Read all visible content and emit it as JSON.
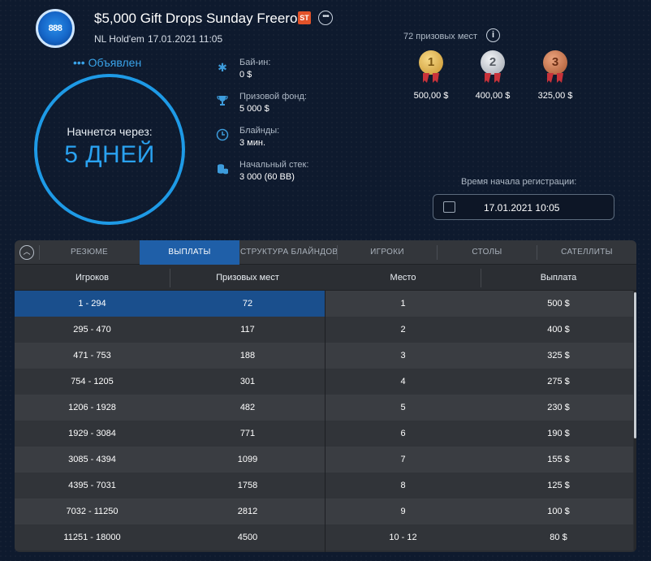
{
  "header": {
    "logo_icon": "pokerstars-logo-icon",
    "logo_text": "888",
    "title": "$5,000 Gift Drops Sunday Freeroll",
    "badge": "ST",
    "more_icon": "more-icon",
    "game": "NL Hold'em",
    "date": "17.01.2021",
    "time": "11:05"
  },
  "status": {
    "announced": "••• Объявлен",
    "starts_in_label": "Начнется через:",
    "starts_in_value": "5 ДНЕЙ"
  },
  "info": {
    "buyin_label": "Бай-ин:",
    "buyin_value": "0 $",
    "prizepool_label": "Призовой фонд:",
    "prizepool_value": "5 000 $",
    "blinds_label": "Блайнды:",
    "blinds_value": "3 мин.",
    "stack_label": "Начальный стек:",
    "stack_value": "3 000 (60 BB)"
  },
  "prizes": {
    "places_label": "72 призовых мест",
    "medals": [
      {
        "rank": "1",
        "value": "500,00 $",
        "color": "#d8a93a"
      },
      {
        "rank": "2",
        "value": "400,00 $",
        "color": "#b9bec6"
      },
      {
        "rank": "3",
        "value": "325,00 $",
        "color": "#c0704a"
      }
    ]
  },
  "registration": {
    "label": "Время начала регистрации:",
    "value": "17.01.2021 10:05"
  },
  "tabs": [
    {
      "label": "РЕЗЮМЕ"
    },
    {
      "label": "ВЫПЛАТЫ"
    },
    {
      "label": "СТРУКТУРА БЛАЙНДОВ"
    },
    {
      "label": "ИГРОКИ"
    },
    {
      "label": "СТОЛЫ"
    },
    {
      "label": "САТЕЛЛИТЫ"
    }
  ],
  "table": {
    "headers": [
      "Игроков",
      "Призовых мест",
      "Место",
      "Выплата"
    ],
    "left_rows": [
      [
        "1 - 294",
        "72"
      ],
      [
        "295 - 470",
        "117"
      ],
      [
        "471 - 753",
        "188"
      ],
      [
        "754 - 1205",
        "301"
      ],
      [
        "1206 - 1928",
        "482"
      ],
      [
        "1929 - 3084",
        "771"
      ],
      [
        "3085 - 4394",
        "1099"
      ],
      [
        "4395 - 7031",
        "1758"
      ],
      [
        "7032 - 11250",
        "2812"
      ],
      [
        "11251 - 18000",
        "4500"
      ]
    ],
    "right_rows": [
      [
        "1",
        "500 $"
      ],
      [
        "2",
        "400 $"
      ],
      [
        "3",
        "325 $"
      ],
      [
        "4",
        "275 $"
      ],
      [
        "5",
        "230 $"
      ],
      [
        "6",
        "190 $"
      ],
      [
        "7",
        "155 $"
      ],
      [
        "8",
        "125 $"
      ],
      [
        "9",
        "100 $"
      ],
      [
        "10 - 12",
        "80 $"
      ]
    ]
  },
  "colors": {
    "accent": "#1e9ae6",
    "selected_row": "#1a4f8d",
    "active_tab": "#1f5fa8"
  }
}
